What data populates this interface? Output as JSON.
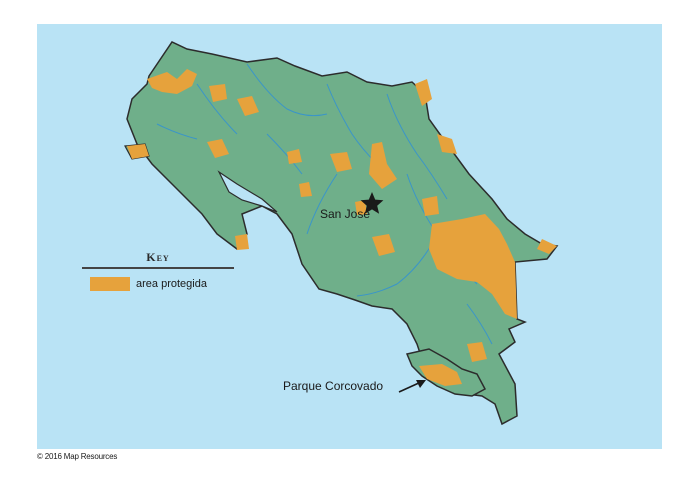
{
  "map": {
    "land_color": "#6faf8a",
    "water_color": "#b9e3f5",
    "protected_color": "#e6a23c",
    "river_color": "#3a95c9",
    "capital_symbol": "star-icon"
  },
  "labels": {
    "capital": "San Jose",
    "park": "Parque Corcovado"
  },
  "key": {
    "title": "Key",
    "items": [
      {
        "label": "area protegida",
        "color": "#e6a23c"
      }
    ]
  },
  "footer": {
    "copyright": "© 2016 Map Resources"
  }
}
